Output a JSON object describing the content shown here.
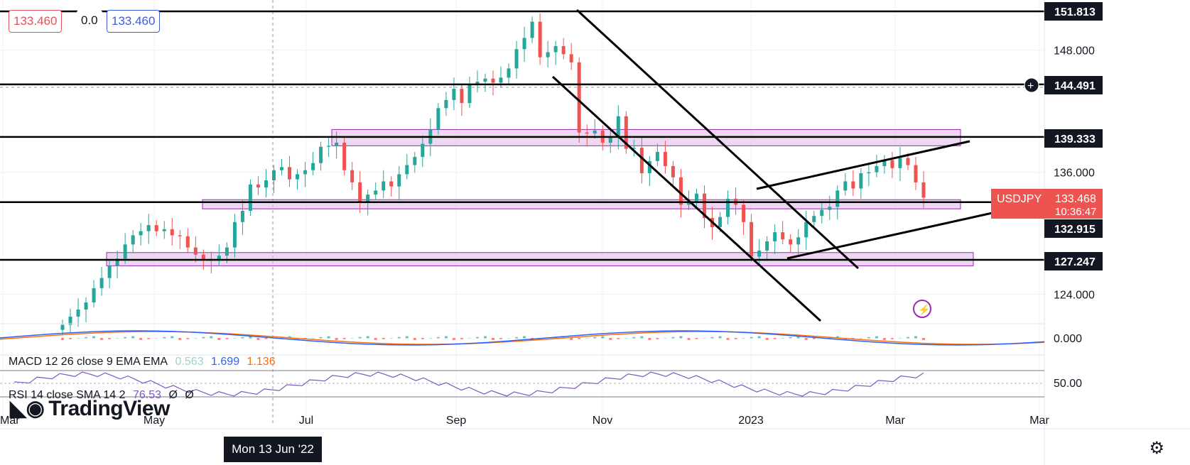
{
  "header": {
    "bid": "133.460",
    "spread": "0.0",
    "ask": "133.460"
  },
  "colors": {
    "up": "#26a69a",
    "down": "#ef5350",
    "zone_fill": "#e1bee7",
    "zone_border": "#9c27b0",
    "symbol_badge": "#ef5350",
    "macd_line": "#2962ff",
    "signal_line": "#ff6d00",
    "rsi_line": "#7e57c2"
  },
  "chart_data": {
    "type": "candlestick",
    "symbol": "USDJPY",
    "y_axis": {
      "min": 120.5,
      "max": 153.5,
      "ticks": [
        "148.000",
        "136.000",
        "124.000"
      ]
    },
    "x_axis_labels": [
      "Mar",
      "May",
      "Jul",
      "Sep",
      "Nov",
      "2023",
      "Mar",
      "Mar"
    ],
    "last_price": "133.468",
    "countdown": "10:36:47",
    "horizontal_levels": [
      "151.813",
      "144.491",
      "139.333",
      "132.915",
      "127.247"
    ],
    "crosshair_label": "144.491",
    "crosshair_date": "Mon 13 Jun '22",
    "series_close": [
      121.0,
      121.8,
      122.5,
      123.2,
      124.6,
      125.6,
      126.8,
      127.5,
      128.9,
      129.8,
      130.2,
      130.8,
      130.2,
      130.4,
      129.8,
      129.7,
      128.6,
      127.9,
      127.4,
      127.3,
      127.8,
      128.6,
      131.1,
      132.2,
      134.8,
      134.5,
      135.2,
      136.2,
      136.5,
      135.3,
      135.8,
      136.2,
      136.9,
      138.5,
      138.6,
      138.9,
      136.2,
      135.0,
      133.0,
      133.8,
      134.2,
      135.1,
      134.6,
      135.8,
      136.7,
      137.5,
      138.8,
      140.2,
      142.3,
      143.1,
      144.2,
      142.8,
      144.6,
      144.9,
      145.2,
      144.8,
      145.3,
      146.2,
      148.1,
      149.2,
      150.8,
      147.3,
      147.8,
      148.4,
      147.6,
      146.8,
      139.9,
      139.8,
      140.1,
      138.9,
      139.5,
      141.5,
      138.3,
      138.4,
      135.9,
      137.1,
      138.0,
      136.6,
      135.5,
      132.8,
      133.1,
      133.9,
      131.5,
      130.6,
      131.6,
      133.4,
      132.8,
      131.1,
      127.7,
      128.3,
      129.2,
      130.1,
      129.4,
      128.9,
      129.6,
      131.1,
      131.7,
      132.3,
      132.6,
      134.2,
      135.1,
      134.4,
      135.9,
      136.0,
      136.6,
      137.2,
      136.4,
      137.4,
      136.7,
      135.0,
      133.5
    ],
    "macd": {
      "label": "MACD 12 26 close 9 EMA EMA",
      "histogram": "0.563",
      "macd": "1.699",
      "signal": "1.136",
      "tick": "0.000"
    },
    "rsi": {
      "label": "RSI 14 close SMA 14 2",
      "value": "76.53",
      "extra1": "Ø",
      "extra2": "Ø",
      "tick": "50.00"
    }
  },
  "branding": {
    "logo_text": "TradingView"
  },
  "icons": {
    "settings": "gear-icon",
    "alert": "lightning-icon",
    "add_alert": "plus-circle-icon",
    "logo": "tv-logo-icon"
  }
}
